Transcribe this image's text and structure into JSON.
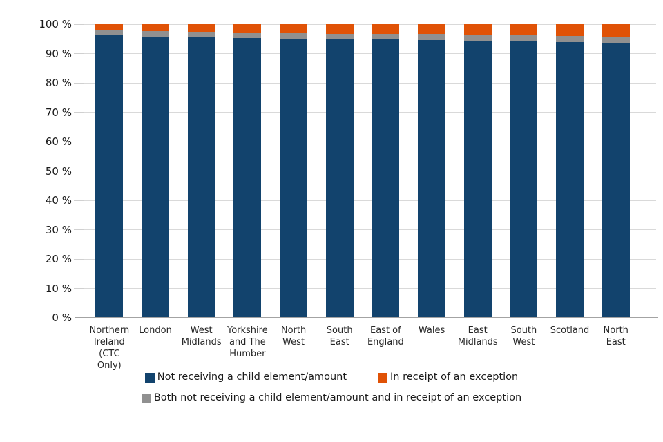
{
  "chart_data": {
    "type": "bar",
    "stacked": true,
    "percent_stacked": true,
    "title": "",
    "xlabel": "",
    "ylabel": "",
    "grid": true,
    "legend_position": "bottom",
    "ylim": [
      0,
      100
    ],
    "y_ticks": [
      "0 %",
      "10 %",
      "20 %",
      "30 %",
      "40 %",
      "50 %",
      "60 %",
      "70 %",
      "80 %",
      "90 %",
      "100 %"
    ],
    "categories": [
      "Northern\nIreland\n(CTC Only)",
      "London",
      "West\nMidlands",
      "Yorkshire\nand The\nHumber",
      "North\nWest",
      "South\nEast",
      "East of\nEngland",
      "Wales",
      "East\nMidlands",
      "South\nWest",
      "Scotland",
      "North\nEast"
    ],
    "series": [
      {
        "name": "Not receiving a child element/amount",
        "color": "#12436D",
        "values": [
          96.2,
          95.8,
          95.6,
          95.2,
          95.1,
          94.9,
          94.8,
          94.7,
          94.4,
          94.2,
          94.0,
          93.7
        ]
      },
      {
        "name": "Both not receiving a child element/amount and in receipt of an exception",
        "color": "#909090",
        "values": [
          1.7,
          1.8,
          1.8,
          1.8,
          1.9,
          1.9,
          1.9,
          2.0,
          2.0,
          2.0,
          2.0,
          1.8
        ]
      },
      {
        "name": "In receipt of an exception",
        "color": "#E05206",
        "values": [
          2.1,
          2.4,
          2.6,
          3.0,
          3.0,
          3.2,
          3.3,
          3.3,
          3.6,
          3.8,
          4.0,
          4.5
        ]
      }
    ],
    "axis_colors": {
      "gridline": "#d9d9d9",
      "axis_line": "#a3a3a3",
      "tick_label": "#1a1a1a"
    }
  }
}
